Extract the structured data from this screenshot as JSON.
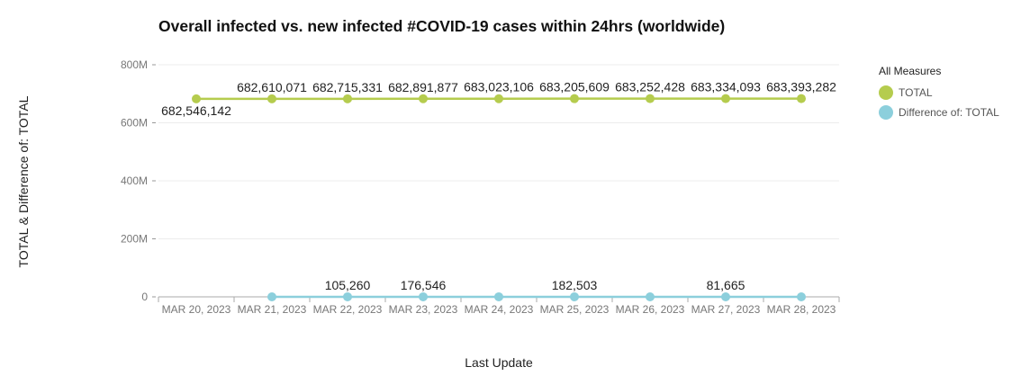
{
  "chart_data": {
    "type": "line",
    "title": "Overall infected vs. new infected #COVID-19 cases within 24hrs (worldwide)",
    "xlabel": "Last Update",
    "ylabel": "TOTAL & Difference of: TOTAL",
    "categories": [
      "MAR 20, 2023",
      "MAR 21, 2023",
      "MAR 22, 2023",
      "MAR 23, 2023",
      "MAR 24, 2023",
      "MAR 25, 2023",
      "MAR 26, 2023",
      "MAR 27, 2023",
      "MAR 28, 2023"
    ],
    "ylim": [
      0,
      800000000
    ],
    "yticks": [
      {
        "value": 0,
        "label": "0"
      },
      {
        "value": 200000000,
        "label": "200M"
      },
      {
        "value": 400000000,
        "label": "400M"
      },
      {
        "value": 600000000,
        "label": "600M"
      },
      {
        "value": 800000000,
        "label": "800M"
      }
    ],
    "grid": true,
    "legend_position": "right",
    "legend_title": "All Measures",
    "series": [
      {
        "name": "TOTAL",
        "color": "#b5cc4e",
        "values": [
          682546142,
          682610071,
          682715331,
          682891877,
          683023106,
          683205609,
          683252428,
          683334093,
          683393282
        ],
        "labels": [
          "682,546,142",
          "682,610,071",
          "682,715,331",
          "682,891,877",
          "683,023,106",
          "683,205,609",
          "683,252,428",
          "683,334,093",
          "683,393,282"
        ]
      },
      {
        "name": "Difference of: TOTAL",
        "color": "#8ccfdc",
        "values": [
          null,
          63929,
          105260,
          176546,
          131229,
          182503,
          46819,
          81665,
          59189
        ],
        "labels": [
          "",
          "",
          "105,260",
          "176,546",
          "",
          "182,503",
          "",
          "81,665",
          ""
        ]
      }
    ]
  }
}
